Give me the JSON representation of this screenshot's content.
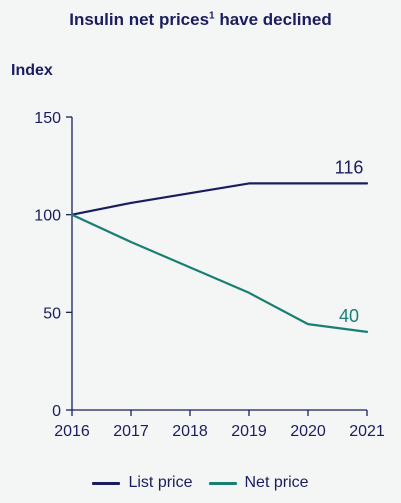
{
  "colors": {
    "list_price": "#1b1e5e",
    "net_price": "#1a7f73",
    "axis": "#1b1e5e",
    "background": "#f4f5f5"
  },
  "chart_data": {
    "type": "line",
    "title": "Insulin net prices",
    "title_superscript": "1",
    "title_rest": " have declined",
    "ylabel": "Index",
    "xlabel": "",
    "x": [
      "2016",
      "2017",
      "2018",
      "2019",
      "2020",
      "2021"
    ],
    "ylim": [
      0,
      150
    ],
    "yticks": [
      0,
      50,
      100,
      150
    ],
    "grid": false,
    "legend_position": "bottom-center",
    "series": [
      {
        "name": "List price",
        "values": [
          100,
          106,
          111,
          116,
          116,
          116
        ],
        "end_label": "116"
      },
      {
        "name": "Net price",
        "values": [
          100,
          86,
          73,
          60,
          44,
          40
        ],
        "end_label": "40"
      }
    ]
  }
}
